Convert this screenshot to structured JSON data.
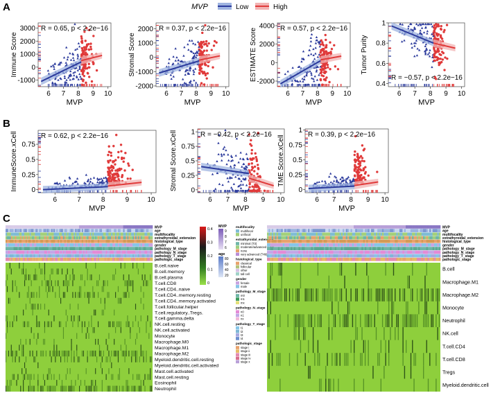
{
  "panel_labels": [
    "A",
    "B",
    "C"
  ],
  "legend": {
    "title": "MVP",
    "items": [
      {
        "label": "Low",
        "color": "#2b3a9c"
      },
      {
        "label": "High",
        "color": "#e03a3a"
      }
    ]
  },
  "colors": {
    "low": "#2b3a9c",
    "high": "#e03a3a",
    "low_band": "#9fb4e0",
    "high_band": "#f2b3b3",
    "heat_bg": "#8ecf3c",
    "heat_dark": "#1c3d10"
  },
  "chart_data": [
    {
      "id": "a1",
      "type": "scatter",
      "ylabel": "Immune Score",
      "xlabel": "MVP",
      "annotation": "R = 0.65, p < 2.2e−16",
      "xlim": [
        5.3,
        10.2
      ],
      "ylim": [
        -1500,
        3400
      ],
      "xticks": [
        6,
        7,
        8,
        9,
        10
      ],
      "yticks": [
        -1000,
        0,
        1000,
        2000,
        3000
      ],
      "cutoff": 8.2,
      "fit_low": [
        [
          5.5,
          -1100
        ],
        [
          8.2,
          400
        ]
      ],
      "fit_high": [
        [
          8.2,
          500
        ],
        [
          9.6,
          900
        ]
      ]
    },
    {
      "id": "a2",
      "type": "scatter",
      "ylabel": "Stromal Score",
      "xlabel": "MVP",
      "annotation": "R = 0.37, p < 2.2e−16",
      "xlim": [
        5.3,
        10.2
      ],
      "ylim": [
        -2050,
        2400
      ],
      "xticks": [
        6,
        7,
        8,
        9,
        10
      ],
      "yticks": [
        -2000,
        -1000,
        0,
        1000,
        2000
      ],
      "cutoff": 8.2,
      "fit_low": [
        [
          5.5,
          -1100
        ],
        [
          8.2,
          -250
        ]
      ],
      "fit_high": [
        [
          8.2,
          -200
        ],
        [
          9.6,
          100
        ]
      ]
    },
    {
      "id": "a3",
      "type": "scatter",
      "ylabel": "ESTIMATE Score",
      "xlabel": "MVP",
      "annotation": "R = 0.57, p < 2.2e−16",
      "xlim": [
        5.3,
        10.2
      ],
      "ylim": [
        -2600,
        4300
      ],
      "xticks": [
        6,
        7,
        8,
        9,
        10
      ],
      "yticks": [
        -2000,
        0,
        2000,
        4000
      ],
      "cutoff": 8.2,
      "fit_low": [
        [
          5.5,
          -2300
        ],
        [
          8.2,
          200
        ]
      ],
      "fit_high": [
        [
          8.2,
          300
        ],
        [
          9.6,
          700
        ]
      ]
    },
    {
      "id": "a4",
      "type": "scatter",
      "ylabel": "Tumor Purity",
      "xlabel": "MVP",
      "annotation": "R = −0.57, p < 2.2e−16",
      "xlim": [
        5.3,
        10.2
      ],
      "ylim": [
        0.37,
        1.0
      ],
      "xticks": [
        6,
        7,
        8,
        9,
        10
      ],
      "yticks": [
        0.4,
        0.6,
        0.8,
        1.0
      ],
      "cutoff": 8.2,
      "fit_low": [
        [
          5.5,
          0.97
        ],
        [
          8.2,
          0.8
        ]
      ],
      "fit_high": [
        [
          8.2,
          0.8
        ],
        [
          9.6,
          0.75
        ]
      ]
    },
    {
      "id": "b1",
      "type": "scatter",
      "ylabel": "ImmuneScore.xCell",
      "xlabel": "MVP",
      "annotation": "R = 0.62, p < 2.2e−16",
      "xlim": [
        5.3,
        10.2
      ],
      "ylim": [
        -0.05,
        0.98
      ],
      "xticks": [
        6,
        7,
        8,
        9,
        10
      ],
      "yticks": [
        0.0,
        0.25,
        0.5,
        0.75
      ],
      "cutoff": 8.2,
      "fit_low": [
        [
          5.5,
          0.0
        ],
        [
          8.2,
          0.05
        ]
      ],
      "fit_high": [
        [
          8.2,
          0.06
        ],
        [
          9.6,
          0.12
        ]
      ]
    },
    {
      "id": "b2",
      "type": "scatter",
      "ylabel": "Stromal Score.xCell",
      "xlabel": "MVP",
      "annotation": "R = −0.42, p < 2.2e−16",
      "xlim": [
        5.3,
        10.2
      ],
      "ylim": [
        -0.05,
        1.05
      ],
      "xticks": [
        6,
        7,
        8,
        9,
        10
      ],
      "yticks": [
        0.0,
        0.25,
        0.5,
        0.75,
        1.0
      ],
      "cutoff": 8.2,
      "fit_low": [
        [
          5.5,
          0.4
        ],
        [
          8.2,
          0.28
        ]
      ],
      "fit_high": [
        [
          8.2,
          0.2
        ],
        [
          9.6,
          0.07
        ]
      ]
    },
    {
      "id": "b3",
      "type": "scatter",
      "ylabel": "TME Score.xCell",
      "xlabel": "MVP",
      "annotation": "R = 0.39, p < 2.2e−16",
      "xlim": [
        5.3,
        10.2
      ],
      "ylim": [
        -0.05,
        1.02
      ],
      "xticks": [
        6,
        7,
        8,
        9,
        10
      ],
      "yticks": [
        0.0,
        0.25,
        0.5,
        0.75,
        1.0
      ],
      "cutoff": 8.2,
      "fit_low": [
        [
          5.5,
          0.02
        ],
        [
          8.2,
          0.06
        ]
      ],
      "fit_high": [
        [
          8.2,
          0.07
        ],
        [
          9.6,
          0.13
        ]
      ]
    },
    {
      "id": "c_left",
      "type": "heatmap",
      "annotation_tracks": [
        "MVP",
        "age",
        "multifocality",
        "extrathyroidal_extension",
        "histological_type",
        "gender",
        "pathology_M_stage",
        "pathology_N_stage",
        "pathology_T_stage",
        "pathologic_stage"
      ],
      "rows": [
        "B.cell.naive",
        "B.cell.memory",
        "B.cell.plasma",
        "T.cell.CD8",
        "T.cell.CD4..naive",
        "T.cell.CD4..memory.resting",
        "T.cell.CD4..memory.activated",
        "T.cell.follicular.helper",
        "T.cell.regulatory..Tregs.",
        "T.cell.gamma.delta",
        "NK.cell.resting",
        "NK.cell.activated",
        "Monocyte",
        "Macrophage.M0",
        "Macrophage.M1",
        "Macrophage.M2",
        "Myeloid.dendritic.cell.resting",
        "Myeloid.dendritic.cell.activated",
        "Mast.cell.activated",
        "Mast.cell.resting",
        "Eosinophil",
        "Neutrophil"
      ],
      "scale": {
        "ticks": [
          "0.4",
          "0.3",
          "0.2",
          "0.1",
          "0"
        ]
      }
    },
    {
      "id": "c_right",
      "type": "heatmap",
      "annotation_tracks": [
        "MVP",
        "age",
        "multifocality",
        "extrathyroidal_extension",
        "histological_type",
        "gender",
        "pathology_M_stage",
        "pathology_N_stage",
        "pathology_T_stage",
        "pathologic_stage"
      ],
      "rows": [
        "B.cell",
        "Macrophage.M1",
        "Macrophage.M2",
        "Monocyte",
        "Neutrophil",
        "NK.cell",
        "T.cell.CD4",
        "T.cell.CD8",
        "Tregs",
        "Myeloid.dendritic.cell"
      ]
    }
  ],
  "heatmap_legends": {
    "mvp": {
      "title": "MVP",
      "ticks": [
        "9",
        "8",
        "7",
        "6"
      ]
    },
    "age": {
      "title": "age",
      "ticks": [
        "80",
        "60",
        "40",
        "20"
      ]
    },
    "groups": [
      {
        "title": "multifocality",
        "items": [
          "multifocal",
          "unifocal"
        ],
        "colors": [
          "#7fbcd4",
          "#a3d07a"
        ]
      },
      {
        "title": "extrathyroidal_extension",
        "items": [
          "minimal (T3)",
          "moderate/advanced (T4a)",
          "none",
          "very advanced (T4b)"
        ],
        "colors": [
          "#6fb5a8",
          "#9ccf7e",
          "#e8a26d",
          "#b98cd6"
        ]
      },
      {
        "title": "histological_type",
        "items": [
          "classical",
          "follicular",
          "other",
          "tall cell"
        ],
        "colors": [
          "#e8a26d",
          "#b3c37a",
          "#d6c2e6",
          "#9fd3c7"
        ]
      },
      {
        "title": "gender",
        "items": [
          "female",
          "male"
        ],
        "colors": [
          "#c9a3e0",
          "#87c5e8"
        ]
      },
      {
        "title": "pathology_M_stage",
        "items": [
          "m0",
          "m1",
          "mx"
        ],
        "colors": [
          "#6fb5a8",
          "#3d9a5c",
          "#e4e07a"
        ]
      },
      {
        "title": "pathology_N_stage",
        "items": [
          "n0",
          "n1",
          "nx"
        ],
        "colors": [
          "#e38ad6",
          "#c3a6e6",
          "#f2b8d8"
        ]
      },
      {
        "title": "pathology_T_stage",
        "items": [
          "t1",
          "t2",
          "t3",
          "t4"
        ],
        "colors": [
          "#87c5e8",
          "#7fb6d6",
          "#a8a9e0",
          "#6c8fd0"
        ]
      },
      {
        "title": "pathologic_stage",
        "items": [
          "stage i",
          "stage ii",
          "stage iii",
          "stage iv",
          "stage x"
        ],
        "colors": [
          "#e9a36d",
          "#e6bb66",
          "#e38ab0",
          "#d86d8d",
          "#b9a0d8"
        ]
      }
    ]
  }
}
